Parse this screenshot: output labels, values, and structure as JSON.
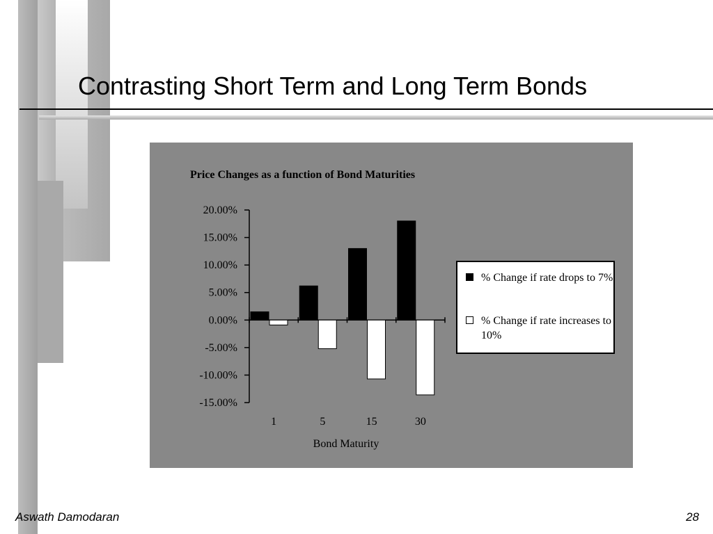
{
  "slide": {
    "title": "Contrasting Short Term and Long Term Bonds",
    "author": "Aswath Damodaran",
    "page_number": "28"
  },
  "colors": {
    "panel": "#888888",
    "series_drop": "#000000",
    "series_increase": "#ffffff"
  },
  "chart_data": {
    "type": "bar",
    "title": "Price Changes as a function of Bond Maturities",
    "xlabel": "Bond Maturity",
    "ylabel": "",
    "categories": [
      "1",
      "5",
      "15",
      "30"
    ],
    "ylim": [
      -0.15,
      0.2
    ],
    "y_ticks": [
      "20.00%",
      "15.00%",
      "10.00%",
      "5.00%",
      "0.00%",
      "-5.00%",
      "-10.00%",
      "-15.00%"
    ],
    "y_tick_values": [
      0.2,
      0.15,
      0.1,
      0.05,
      0.0,
      -0.05,
      -0.1,
      -0.15
    ],
    "legend_position": "right",
    "grid": false,
    "series": [
      {
        "name": "% Change if rate drops to 7%",
        "values": [
          0.015,
          0.062,
          0.13,
          0.18
        ]
      },
      {
        "name": "% Change if rate increases to 10%",
        "values": [
          -0.009,
          -0.052,
          -0.107,
          -0.136
        ]
      }
    ]
  }
}
